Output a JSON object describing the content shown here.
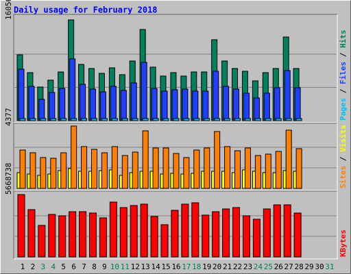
{
  "chart_data": [
    {
      "type": "bar",
      "title": "Daily usage for February 2018",
      "legend_separator": " / ",
      "ylim": [
        0,
        160568
      ],
      "yticks": [
        160568
      ],
      "series": [
        {
          "name": "Hits",
          "color": "#00805c",
          "values": [
            104860,
            76460,
            53520,
            64450,
            77550,
            160568,
            89570,
            83020,
            75370,
            84110,
            73190,
            95030,
            145280,
            85200,
            71000,
            76460,
            71000,
            77550,
            77550,
            128890,
            95030,
            83020,
            78640,
            63350,
            76460,
            83020,
            133260,
            83020,
            null,
            null,
            null
          ]
        },
        {
          "name": "Files",
          "color": "#2040ff",
          "values": [
            81920,
            54610,
            33860,
            44780,
            51340,
            98310,
            57890,
            50250,
            45880,
            54610,
            48060,
            60080,
            92840,
            51340,
            46970,
            49150,
            50250,
            46970,
            46970,
            78640,
            54610,
            50250,
            43690,
            36050,
            43690,
            52430,
            79740,
            52430,
            null,
            null,
            null
          ]
        },
        {
          "name": "Pages",
          "color": "#00c0ff",
          "values": [
            3300,
            3300,
            3300,
            3300,
            3300,
            3300,
            3300,
            3300,
            3300,
            3300,
            3300,
            3300,
            3300,
            3300,
            3300,
            3300,
            3300,
            3300,
            3300,
            3300,
            3300,
            3300,
            3300,
            3300,
            3300,
            3300,
            3300,
            3300,
            null,
            null,
            null
          ]
        }
      ]
    },
    {
      "type": "bar",
      "legend_separator": " / ",
      "ylim": [
        0,
        4377
      ],
      "yticks": [
        4377
      ],
      "series": [
        {
          "name": "Visits",
          "color": "#ffff00",
          "values": [
            1106,
            1010,
            914,
            1010,
            1250,
            1395,
            1202,
            1202,
            1250,
            1299,
            914,
            1106,
            1202,
            1202,
            1010,
            1058,
            1010,
            1058,
            1202,
            1202,
            1202,
            1106,
            1299,
            1202,
            1106,
            1106,
            1250,
            1202,
            null,
            null,
            null
          ]
        },
        {
          "name": "Sites",
          "color": "#ff8000",
          "values": [
            2693,
            2501,
            2164,
            2116,
            2501,
            4377,
            2934,
            2742,
            2501,
            2934,
            2308,
            2549,
            4040,
            2838,
            2838,
            2453,
            2164,
            2693,
            2838,
            3992,
            2934,
            2645,
            2838,
            2308,
            2405,
            2597,
            4088,
            2790,
            null,
            null,
            null
          ]
        }
      ]
    },
    {
      "type": "bar",
      "ylim": [
        0,
        5668738
      ],
      "yticks": [
        5668738
      ],
      "categories": [
        "1",
        "2",
        "3",
        "4",
        "5",
        "6",
        "7",
        "8",
        "9",
        "10",
        "11",
        "12",
        "13",
        "14",
        "15",
        "16",
        "17",
        "18",
        "19",
        "20",
        "21",
        "22",
        "23",
        "24",
        "25",
        "26",
        "27",
        "28",
        "29",
        "30",
        "31"
      ],
      "category_colors": [
        "#000000",
        "#000000",
        "#00805c",
        "#00805c",
        "#000000",
        "#000000",
        "#000000",
        "#000000",
        "#000000",
        "#00805c",
        "#00805c",
        "#000000",
        "#000000",
        "#000000",
        "#000000",
        "#000000",
        "#00805c",
        "#00805c",
        "#000000",
        "#000000",
        "#000000",
        "#000000",
        "#000000",
        "#00805c",
        "#00805c",
        "#000000",
        "#000000",
        "#000000",
        "#000000",
        "#000000",
        "#00805c"
      ],
      "series": [
        {
          "name": "KBytes",
          "color": "#ff0000",
          "values": [
            5668738,
            4298200,
            2865500,
            3862200,
            3737600,
            4111400,
            4111400,
            3986800,
            3550800,
            4983500,
            4485100,
            4672000,
            4796600,
            3675300,
            2927800,
            4235900,
            4796600,
            4921200,
            3799900,
            4111400,
            4360600,
            4485100,
            3737600,
            3426100,
            4360600,
            4734300,
            4734300,
            3986800,
            null,
            null,
            null
          ]
        }
      ]
    }
  ]
}
